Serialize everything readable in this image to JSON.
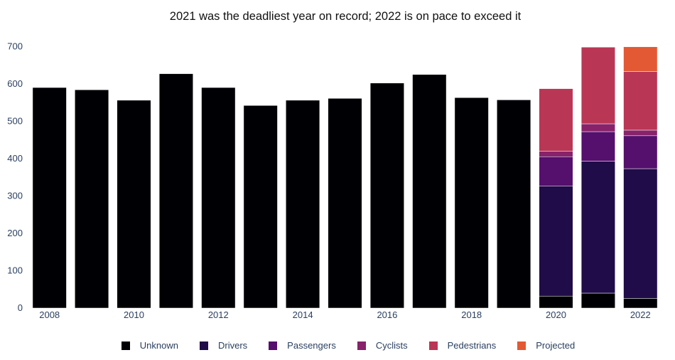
{
  "chart_data": {
    "type": "bar",
    "title": "2021 was the deadliest year on record; 2022 is on pace to exceed it",
    "xlabel": "",
    "ylabel": "",
    "barmode": "stack",
    "ylim": [
      0,
      710
    ],
    "y_ticks": [
      0,
      100,
      200,
      300,
      400,
      500,
      600,
      700
    ],
    "x_ticks": [
      2008,
      2010,
      2012,
      2014,
      2016,
      2018,
      2020,
      2022
    ],
    "categories": [
      2008,
      2009,
      2010,
      2011,
      2012,
      2013,
      2014,
      2015,
      2016,
      2017,
      2018,
      2019,
      2020,
      2021,
      2022
    ],
    "series": [
      {
        "name": "Unknown",
        "color": "#000004",
        "values": [
          590,
          584,
          556,
          627,
          590,
          542,
          556,
          561,
          602,
          625,
          563,
          557,
          32,
          40,
          26
        ]
      },
      {
        "name": "Drivers",
        "color": "#1f0c48",
        "values": [
          0,
          0,
          0,
          0,
          0,
          0,
          0,
          0,
          0,
          0,
          0,
          0,
          294,
          353,
          347
        ]
      },
      {
        "name": "Passengers",
        "color": "#550f6d",
        "values": [
          0,
          0,
          0,
          0,
          0,
          0,
          0,
          0,
          0,
          0,
          0,
          0,
          79,
          79,
          88
        ]
      },
      {
        "name": "Cyclists",
        "color": "#88226a",
        "values": [
          0,
          0,
          0,
          0,
          0,
          0,
          0,
          0,
          0,
          0,
          0,
          0,
          15,
          21,
          15
        ]
      },
      {
        "name": "Pedestrians",
        "color": "#ba3655",
        "values": [
          0,
          0,
          0,
          0,
          0,
          0,
          0,
          0,
          0,
          0,
          0,
          0,
          167,
          205,
          157
        ]
      },
      {
        "name": "Projected",
        "color": "#e35933",
        "values": [
          0,
          0,
          0,
          0,
          0,
          0,
          0,
          0,
          0,
          0,
          0,
          0,
          0,
          0,
          66
        ]
      }
    ],
    "grid": false,
    "legend_position": "bottom"
  }
}
